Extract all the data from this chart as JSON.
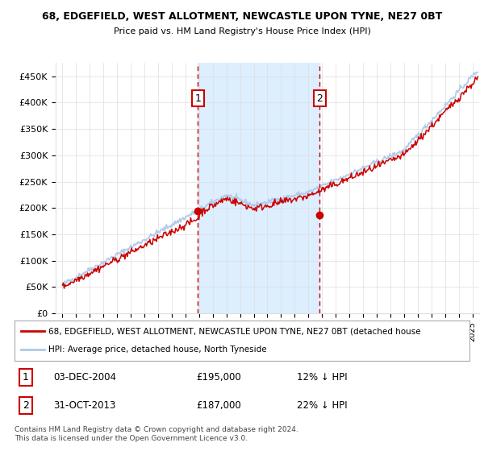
{
  "title1": "68, EDGEFIELD, WEST ALLOTMENT, NEWCASTLE UPON TYNE, NE27 0BT",
  "title2": "Price paid vs. HM Land Registry's House Price Index (HPI)",
  "ylabel_ticks": [
    "£0",
    "£50K",
    "£100K",
    "£150K",
    "£200K",
    "£250K",
    "£300K",
    "£350K",
    "£400K",
    "£450K"
  ],
  "ytick_vals": [
    0,
    50000,
    100000,
    150000,
    200000,
    250000,
    300000,
    350000,
    400000,
    450000
  ],
  "ylim": [
    0,
    475000
  ],
  "xlim_start": 1994.5,
  "xlim_end": 2025.5,
  "xticks": [
    1995,
    1996,
    1997,
    1998,
    1999,
    2000,
    2001,
    2002,
    2003,
    2004,
    2005,
    2006,
    2007,
    2008,
    2009,
    2010,
    2011,
    2012,
    2013,
    2014,
    2015,
    2016,
    2017,
    2018,
    2019,
    2020,
    2021,
    2022,
    2023,
    2024,
    2025
  ],
  "hpi_color": "#aac8e8",
  "price_color": "#cc0000",
  "shade_color": "#ddeeff",
  "vline_color": "#cc0000",
  "marker1_date": 2004.92,
  "marker1_price": 195000,
  "marker2_date": 2013.83,
  "marker2_price": 187000,
  "legend_line1": "68, EDGEFIELD, WEST ALLOTMENT, NEWCASTLE UPON TYNE, NE27 0BT (detached house",
  "legend_line2": "HPI: Average price, detached house, North Tyneside",
  "annotation1_label": "1",
  "annotation2_label": "2",
  "table_row1": [
    "1",
    "03-DEC-2004",
    "£195,000",
    "12% ↓ HPI"
  ],
  "table_row2": [
    "2",
    "31-OCT-2013",
    "£187,000",
    "22% ↓ HPI"
  ],
  "footer": "Contains HM Land Registry data © Crown copyright and database right 2024.\nThis data is licensed under the Open Government Licence v3.0.",
  "bg_color": "#ffffff",
  "plot_bg_color": "#ffffff",
  "grid_color": "#dddddd"
}
